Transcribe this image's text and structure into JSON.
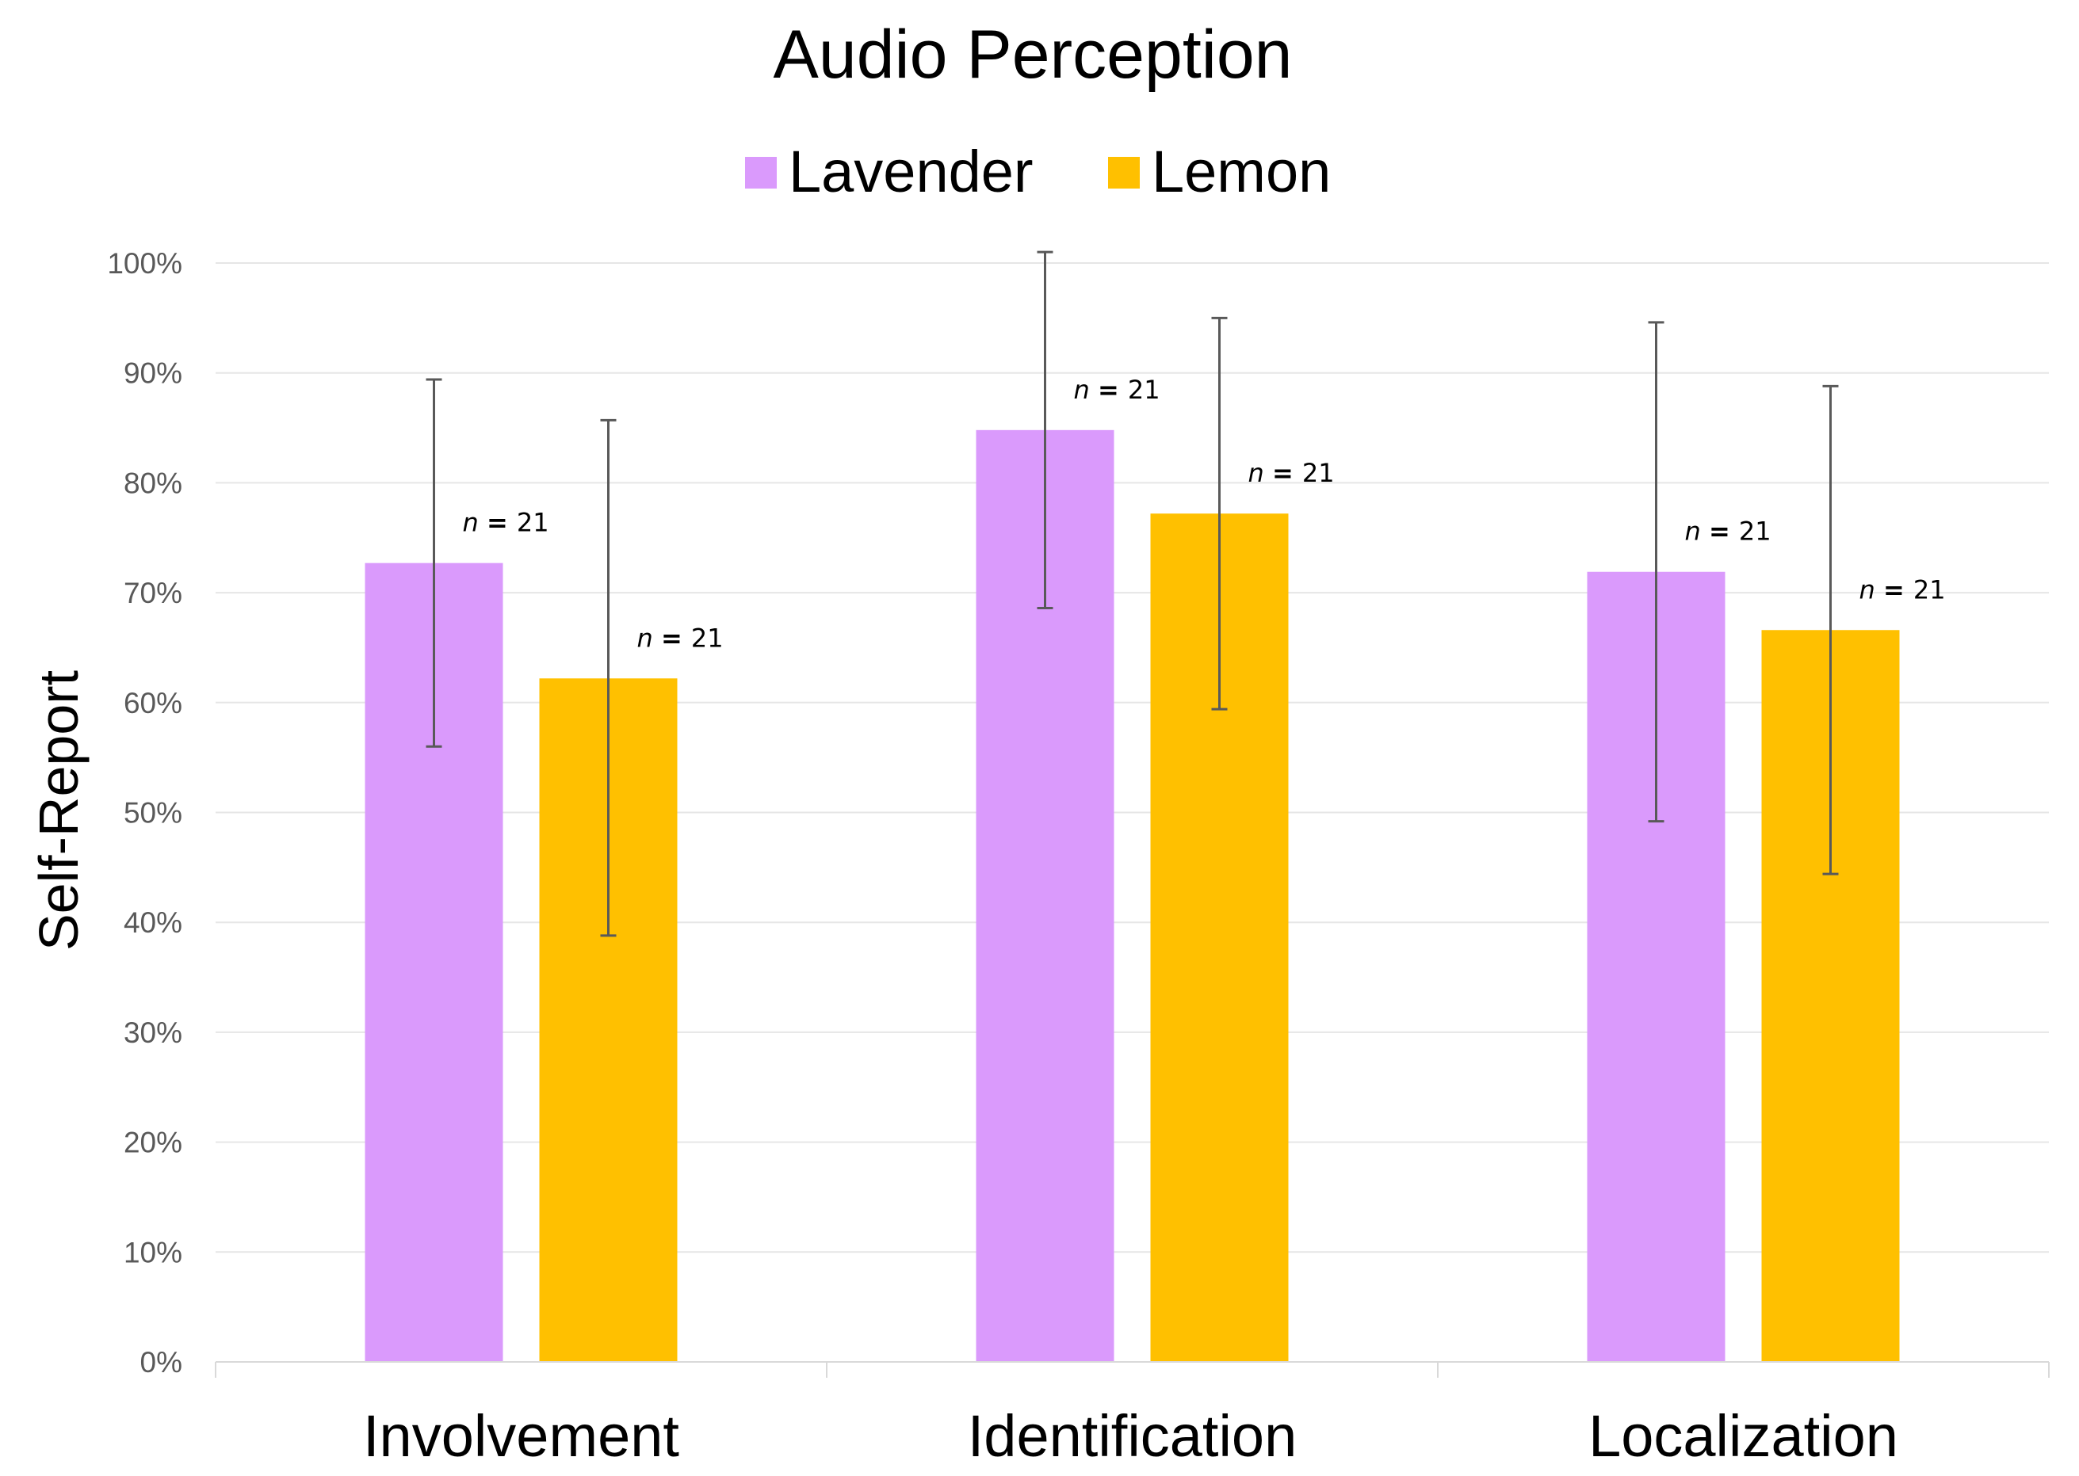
{
  "chart_data": {
    "type": "bar",
    "title": "Audio Perception",
    "xlabel": "",
    "ylabel": "Self-Report",
    "ylim": [
      0,
      100
    ],
    "yticks": [
      "0%",
      "10%",
      "20%",
      "30%",
      "40%",
      "50%",
      "60%",
      "70%",
      "80%",
      "90%",
      "100%"
    ],
    "categories": [
      "Involvement",
      "Identification",
      "Localization"
    ],
    "legend_position": "top-center",
    "grid": true,
    "series": [
      {
        "name": "Lavender",
        "color": "#DA9AFC",
        "values": [
          72.7,
          84.8,
          71.9
        ],
        "error_low": [
          56.0,
          68.6,
          49.2
        ],
        "error_high": [
          89.4,
          101.0,
          94.6
        ],
        "n_labels": [
          "21",
          "21",
          "21"
        ]
      },
      {
        "name": "Lemon",
        "color": "#FFC000",
        "values": [
          62.2,
          77.2,
          66.6
        ],
        "error_low": [
          38.8,
          59.4,
          44.4
        ],
        "error_high": [
          85.7,
          95.0,
          88.8
        ],
        "n_labels": [
          "21",
          "21",
          "21"
        ]
      }
    ],
    "n_prefix": "n",
    "n_equals": "="
  }
}
